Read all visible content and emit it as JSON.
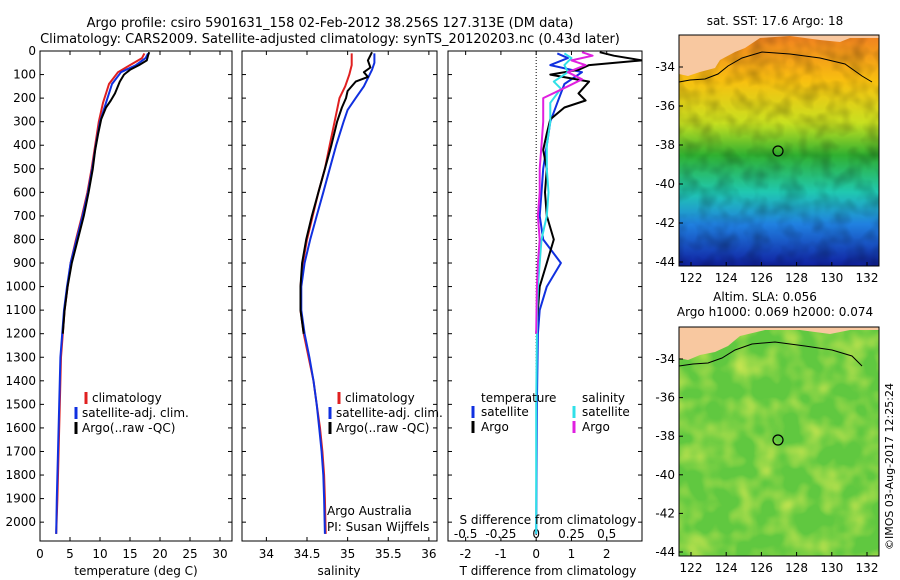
{
  "header": {
    "line1": "Argo profile: csiro 5901631_158 02-Feb-2012 38.256S 127.313E (DM data)",
    "line2": "Climatology: CARS2009. Satellite-adjusted climatology: synTS_20120203.nc (0.43d later)"
  },
  "colors": {
    "climatology": "#e02020",
    "satellite": "#1030e0",
    "argo": "#000000",
    "sat_salinity": "#30e0e8",
    "argo_salinity": "#e020e0"
  },
  "chart_data": [
    {
      "type": "line",
      "xlabel": "temperature (deg C)",
      "xlim": [
        0,
        32
      ],
      "xticks": [
        0,
        5,
        10,
        15,
        20,
        25,
        30
      ],
      "ylim": [
        2080,
        0
      ],
      "yticks": [
        0,
        100,
        200,
        300,
        400,
        500,
        600,
        700,
        800,
        900,
        1000,
        1100,
        1200,
        1300,
        1400,
        1500,
        1600,
        1700,
        1800,
        1900,
        2000
      ],
      "legend": [
        "climatology",
        "satellite-adj. clim.",
        "Argo(..raw -QC)"
      ],
      "series": [
        {
          "name": "climatology",
          "color": "#e02020",
          "points": [
            [
              17.4,
              10
            ],
            [
              17,
              30
            ],
            [
              15,
              60
            ],
            [
              13,
              90
            ],
            [
              11.5,
              140
            ],
            [
              10.5,
              220
            ],
            [
              9.8,
              300
            ],
            [
              9.2,
              400
            ],
            [
              8.6,
              500
            ],
            [
              7.9,
              600
            ],
            [
              7,
              700
            ],
            [
              6,
              800
            ],
            [
              5.1,
              900
            ],
            [
              4.6,
              1000
            ],
            [
              4.1,
              1100
            ],
            [
              3.8,
              1200
            ],
            [
              3.5,
              1300
            ],
            [
              3.3,
              1500
            ],
            [
              3.1,
              1700
            ],
            [
              2.9,
              1900
            ],
            [
              2.7,
              2050
            ]
          ]
        },
        {
          "name": "satellite-adj. clim.",
          "color": "#1030e0",
          "points": [
            [
              18,
              10
            ],
            [
              17.6,
              30
            ],
            [
              16,
              60
            ],
            [
              13.5,
              90
            ],
            [
              12,
              140
            ],
            [
              11,
              220
            ],
            [
              10,
              300
            ],
            [
              9.3,
              400
            ],
            [
              8.7,
              500
            ],
            [
              8,
              600
            ],
            [
              7.1,
              700
            ],
            [
              6.1,
              800
            ],
            [
              5.1,
              900
            ],
            [
              4.5,
              1000
            ],
            [
              4,
              1100
            ],
            [
              3.7,
              1200
            ],
            [
              3.4,
              1300
            ],
            [
              3.2,
              1500
            ],
            [
              3,
              1700
            ],
            [
              2.8,
              1900
            ],
            [
              2.7,
              2050
            ]
          ]
        },
        {
          "name": "Argo(..raw -QC)",
          "color": "#000000",
          "points": [
            [
              18.2,
              5
            ],
            [
              18,
              20
            ],
            [
              17.8,
              40
            ],
            [
              16.5,
              60
            ],
            [
              15,
              80
            ],
            [
              14,
              100
            ],
            [
              13.3,
              130
            ],
            [
              12.5,
              180
            ],
            [
              11.8,
              210
            ],
            [
              11,
              240
            ],
            [
              10.2,
              290
            ],
            [
              9.7,
              350
            ],
            [
              9.2,
              420
            ],
            [
              8.8,
              500
            ],
            [
              8.1,
              600
            ],
            [
              7.3,
              700
            ],
            [
              6.3,
              800
            ],
            [
              5.3,
              900
            ],
            [
              4.6,
              1000
            ],
            [
              4.1,
              1100
            ],
            [
              3.8,
              1200
            ]
          ]
        }
      ]
    },
    {
      "type": "line",
      "xlabel": "salinity",
      "xlim": [
        33.7,
        36.1
      ],
      "xticks": [
        34,
        34.5,
        35,
        35.5,
        36
      ],
      "ylim": [
        2080,
        0
      ],
      "legend": [
        "climatology",
        "satellite-adj. clim.",
        "Argo(..raw -QC)"
      ],
      "annotations": [
        "Argo Australia",
        "PI: Susan Wijffels"
      ],
      "series": [
        {
          "name": "climatology",
          "color": "#e02020",
          "points": [
            [
              35.05,
              10
            ],
            [
              35.05,
              60
            ],
            [
              35.02,
              100
            ],
            [
              34.97,
              150
            ],
            [
              34.9,
              200
            ],
            [
              34.84,
              300
            ],
            [
              34.78,
              400
            ],
            [
              34.72,
              500
            ],
            [
              34.64,
              600
            ],
            [
              34.57,
              700
            ],
            [
              34.5,
              800
            ],
            [
              34.45,
              900
            ],
            [
              34.42,
              1000
            ],
            [
              34.42,
              1100
            ],
            [
              34.46,
              1200
            ],
            [
              34.52,
              1300
            ],
            [
              34.58,
              1400
            ],
            [
              34.62,
              1500
            ],
            [
              34.66,
              1600
            ],
            [
              34.69,
              1700
            ],
            [
              34.71,
              1800
            ],
            [
              34.72,
              1900
            ],
            [
              34.73,
              2050
            ]
          ]
        },
        {
          "name": "satellite-adj. clim.",
          "color": "#1030e0",
          "points": [
            [
              35.33,
              10
            ],
            [
              35.33,
              50
            ],
            [
              35.3,
              80
            ],
            [
              35.2,
              150
            ],
            [
              35.1,
              200
            ],
            [
              35.0,
              250
            ],
            [
              34.95,
              300
            ],
            [
              34.86,
              400
            ],
            [
              34.78,
              500
            ],
            [
              34.7,
              600
            ],
            [
              34.62,
              700
            ],
            [
              34.54,
              800
            ],
            [
              34.47,
              900
            ],
            [
              34.43,
              1000
            ],
            [
              34.43,
              1100
            ],
            [
              34.47,
              1200
            ],
            [
              34.53,
              1300
            ],
            [
              34.58,
              1400
            ],
            [
              34.62,
              1500
            ],
            [
              34.65,
              1600
            ],
            [
              34.68,
              1700
            ],
            [
              34.7,
              1800
            ],
            [
              34.71,
              1900
            ],
            [
              34.72,
              2050
            ]
          ]
        },
        {
          "name": "Argo(..raw -QC)",
          "color": "#000000",
          "points": [
            [
              35.3,
              5
            ],
            [
              35.25,
              40
            ],
            [
              35.28,
              70
            ],
            [
              35.2,
              90
            ],
            [
              35.25,
              110
            ],
            [
              35.1,
              130
            ],
            [
              35.0,
              170
            ],
            [
              34.98,
              200
            ],
            [
              34.93,
              240
            ],
            [
              34.87,
              300
            ],
            [
              34.8,
              400
            ],
            [
              34.72,
              500
            ],
            [
              34.64,
              600
            ],
            [
              34.56,
              700
            ],
            [
              34.49,
              800
            ],
            [
              34.44,
              900
            ],
            [
              34.42,
              1000
            ],
            [
              34.42,
              1100
            ],
            [
              34.46,
              1200
            ]
          ]
        }
      ]
    },
    {
      "type": "line",
      "xlabel": "T difference from climatology",
      "xlabel_top": "S difference from climatology",
      "xlim": [
        -2.5,
        3
      ],
      "xticks": [
        -2,
        -1,
        0,
        1,
        2
      ],
      "xticks_top": [
        -0.5,
        -0.25,
        0,
        0.25,
        0.5
      ],
      "ylim": [
        2080,
        0
      ],
      "legend": {
        "temperature": "temperature",
        "salinity": "salinity",
        "sat": "satellite",
        "argo": "Argo"
      },
      "series": [
        {
          "name": "satellite",
          "color": "#1030e0",
          "points": [
            [
              0.6,
              10
            ],
            [
              0.9,
              30
            ],
            [
              0.4,
              60
            ],
            [
              1.3,
              90
            ],
            [
              0.8,
              140
            ],
            [
              0.6,
              220
            ],
            [
              0.4,
              300
            ],
            [
              0.3,
              400
            ],
            [
              0.2,
              500
            ],
            [
              0.15,
              600
            ],
            [
              0.1,
              700
            ],
            [
              0.2,
              800
            ],
            [
              0.7,
              900
            ],
            [
              0.3,
              1000
            ],
            [
              0.1,
              1100
            ],
            [
              0.05,
              1200
            ],
            [
              0.02,
              1500
            ],
            [
              0,
              2050
            ]
          ]
        },
        {
          "name": "Argo",
          "color": "#000000",
          "points": [
            [
              1.8,
              5
            ],
            [
              2.2,
              20
            ],
            [
              3,
              40
            ],
            [
              1.5,
              60
            ],
            [
              1.2,
              80
            ],
            [
              0.4,
              100
            ],
            [
              1.5,
              130
            ],
            [
              1.2,
              180
            ],
            [
              1.4,
              210
            ],
            [
              0.8,
              240
            ],
            [
              0.4,
              290
            ],
            [
              0.3,
              350
            ],
            [
              0.2,
              420
            ],
            [
              0.3,
              500
            ],
            [
              0.25,
              600
            ],
            [
              0.3,
              700
            ],
            [
              0.5,
              800
            ],
            [
              0.3,
              900
            ],
            [
              0.1,
              1000
            ],
            [
              0.05,
              1100
            ],
            [
              0,
              1200
            ]
          ]
        },
        {
          "name": "satellite (S)",
          "color": "#30e0e8",
          "points": [
            [
              0.8,
              10
            ],
            [
              1,
              30
            ],
            [
              0.8,
              60
            ],
            [
              0.9,
              90
            ],
            [
              0.5,
              130
            ],
            [
              0.7,
              160
            ],
            [
              0.4,
              220
            ],
            [
              0.4,
              300
            ],
            [
              0.3,
              400
            ],
            [
              0.3,
              500
            ],
            [
              0.35,
              600
            ],
            [
              0.3,
              700
            ],
            [
              0.15,
              800
            ],
            [
              0.1,
              900
            ],
            [
              0.05,
              1000
            ],
            [
              0.03,
              1100
            ],
            [
              0,
              1500
            ],
            [
              0,
              2050
            ]
          ]
        },
        {
          "name": "Argo (S)",
          "color": "#e020e0",
          "points": [
            [
              1.3,
              5
            ],
            [
              1.6,
              20
            ],
            [
              1,
              40
            ],
            [
              1.4,
              60
            ],
            [
              0.9,
              90
            ],
            [
              1.3,
              120
            ],
            [
              0.9,
              150
            ],
            [
              0.2,
              200
            ],
            [
              0.2,
              300
            ],
            [
              0.15,
              400
            ],
            [
              0.1,
              500
            ],
            [
              0.1,
              600
            ],
            [
              0.05,
              700
            ],
            [
              0.1,
              800
            ],
            [
              0.05,
              900
            ],
            [
              0.02,
              1000
            ],
            [
              0.0,
              1200
            ]
          ]
        }
      ]
    }
  ],
  "maps": {
    "sst": {
      "title": "sat. SST: 17.6  Argo: 18",
      "lon_ticks": [
        "122",
        "124",
        "126",
        "128",
        "130",
        "132"
      ],
      "lat_ticks": [
        "-34",
        "-36",
        "-38",
        "-40",
        "-42",
        "-44"
      ]
    },
    "sla": {
      "title1": "Altim. SLA: 0.056",
      "title2": "Argo h1000: 0.069 h2000: 0.074",
      "lon_ticks": [
        "122",
        "124",
        "126",
        "128",
        "130",
        "132"
      ],
      "lat_ticks": [
        "-34",
        "-36",
        "-38",
        "-40",
        "-42",
        "-44"
      ]
    }
  },
  "credit": "©IMOS 03-Aug-2017 12:25:24"
}
